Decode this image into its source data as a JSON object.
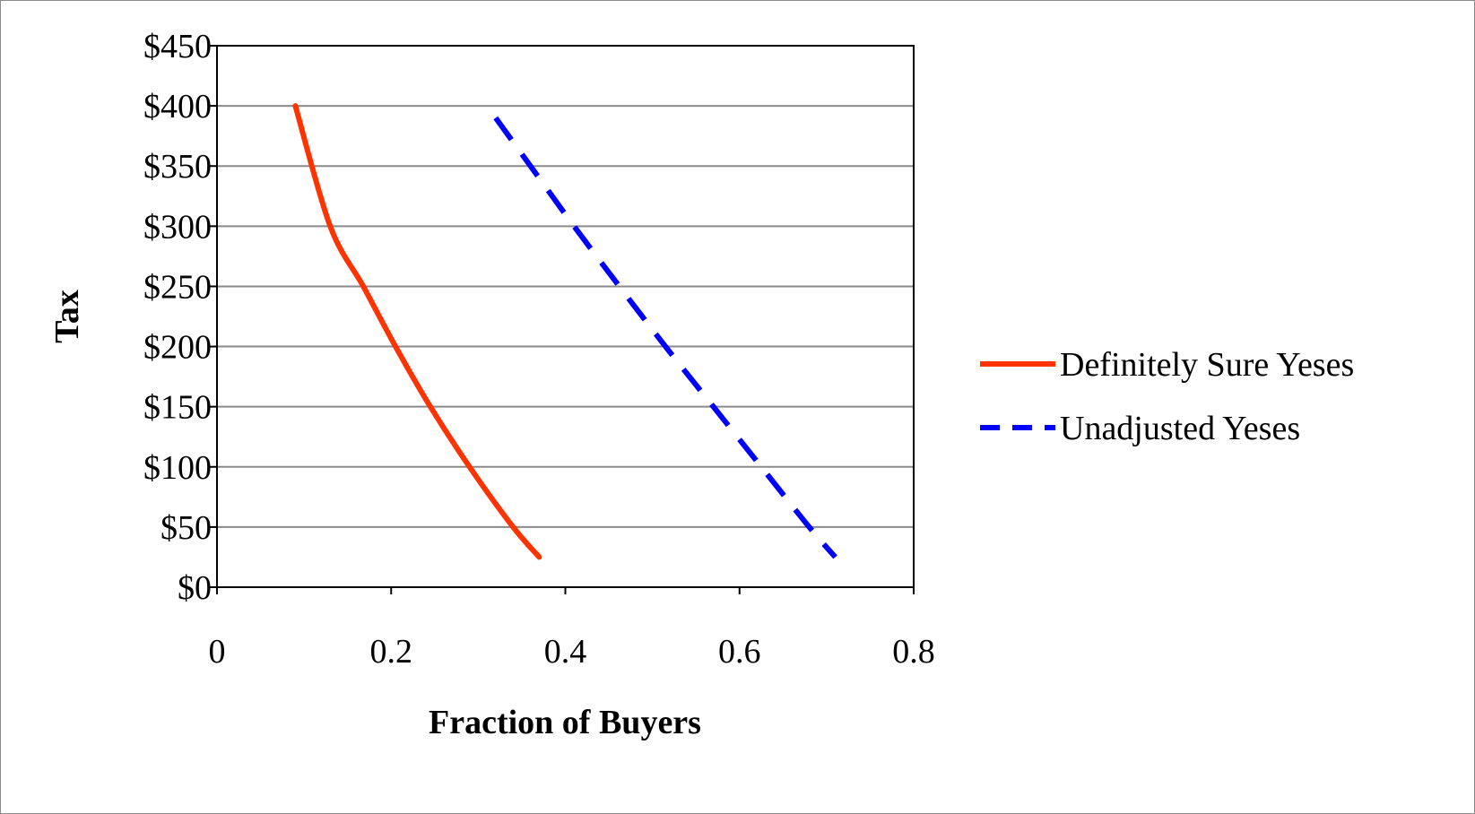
{
  "chart_data": {
    "type": "line",
    "xlabel": "Fraction of Buyers",
    "ylabel": "Tax",
    "xlim": [
      0,
      0.8
    ],
    "ylim": [
      0,
      450
    ],
    "x_ticks": [
      0,
      0.2,
      0.4,
      0.6,
      0.8
    ],
    "x_tick_labels": [
      "0",
      "0.2",
      "0.4",
      "0.6",
      "0.8"
    ],
    "y_ticks": [
      0,
      50,
      100,
      150,
      200,
      250,
      300,
      350,
      400,
      450
    ],
    "y_tick_labels": [
      "$0",
      "$50",
      "$100",
      "$150",
      "$200",
      "$250",
      "$300",
      "$350",
      "$400",
      "$450"
    ],
    "grid": "horizontal",
    "legend_position": "right",
    "series": [
      {
        "name": "Definitely Sure Yeses",
        "color": "#ff3300",
        "style": "solid",
        "points": [
          [
            0.09,
            400
          ],
          [
            0.13,
            300
          ],
          [
            0.168,
            250
          ],
          [
            0.205,
            200
          ],
          [
            0.245,
            150
          ],
          [
            0.29,
            100
          ],
          [
            0.34,
            50
          ],
          [
            0.37,
            25
          ]
        ]
      },
      {
        "name": "Unadjusted Yeses",
        "color": "#0000ff",
        "style": "dashed",
        "points": [
          [
            0.32,
            390
          ],
          [
            0.36,
            350
          ],
          [
            0.41,
            300
          ],
          [
            0.462,
            250
          ],
          [
            0.515,
            200
          ],
          [
            0.57,
            150
          ],
          [
            0.625,
            100
          ],
          [
            0.68,
            50
          ],
          [
            0.71,
            25
          ]
        ]
      }
    ]
  }
}
